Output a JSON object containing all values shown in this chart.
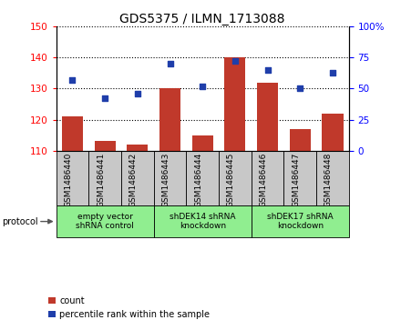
{
  "title": "GDS5375 / ILMN_1713088",
  "samples": [
    "GSM1486440",
    "GSM1486441",
    "GSM1486442",
    "GSM1486443",
    "GSM1486444",
    "GSM1486445",
    "GSM1486446",
    "GSM1486447",
    "GSM1486448"
  ],
  "counts": [
    121,
    113,
    112,
    130,
    115,
    140,
    132,
    117,
    122
  ],
  "percentiles": [
    57,
    42,
    46,
    70,
    52,
    72,
    65,
    50,
    63
  ],
  "ylim_left": [
    110,
    150
  ],
  "ylim_right": [
    0,
    100
  ],
  "yticks_left": [
    110,
    120,
    130,
    140,
    150
  ],
  "yticks_right": [
    0,
    25,
    50,
    75,
    100
  ],
  "bar_color": "#C0392B",
  "dot_color": "#1F3EAA",
  "bar_width": 0.65,
  "groups": [
    {
      "label": "empty vector\nshRNA control",
      "start": 0,
      "end": 3,
      "color": "#90EE90"
    },
    {
      "label": "shDEK14 shRNA\nknockdown",
      "start": 3,
      "end": 6,
      "color": "#90EE90"
    },
    {
      "label": "shDEK17 shRNA\nknockdown",
      "start": 6,
      "end": 9,
      "color": "#90EE90"
    }
  ],
  "legend_count_label": "count",
  "legend_percentile_label": "percentile rank within the sample",
  "tick_bg_color": "#C8C8C8"
}
